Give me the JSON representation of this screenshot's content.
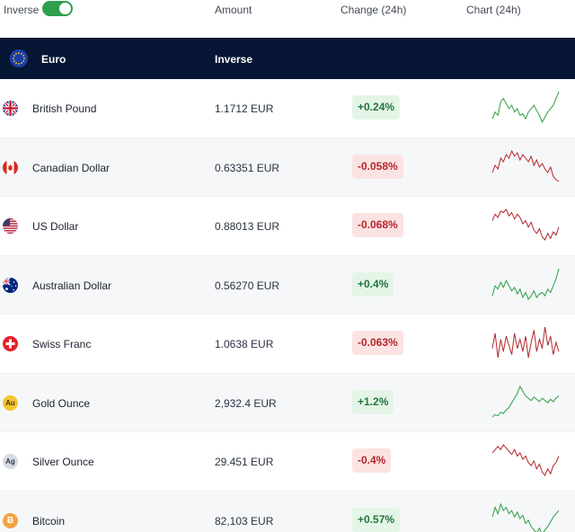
{
  "header": {
    "inverse_label": "Inverse",
    "inverse_on": true,
    "amount_label": "Amount",
    "change_label": "Change (24h)",
    "chart_label": "Chart (24h)"
  },
  "base": {
    "name": "Euro",
    "inverse_label": "Inverse"
  },
  "colors": {
    "up": "#2e9e3f",
    "down": "#b3262c",
    "base_bar": "#061634"
  },
  "rows": [
    {
      "name": "British Pound",
      "amount": "1.1712 EUR",
      "change": "+0.24%",
      "trend": "up",
      "flag": "gb-flag-icon",
      "spark": [
        18,
        14,
        16,
        8,
        6,
        9,
        12,
        10,
        14,
        12,
        16,
        15,
        18,
        14,
        12,
        10,
        13,
        16,
        20,
        17,
        14,
        12,
        10,
        6,
        2
      ]
    },
    {
      "name": "Canadian Dollar",
      "amount": "0.63351 EUR",
      "change": "-0.058%",
      "trend": "down",
      "flag": "ca-flag-icon",
      "spark": [
        22,
        18,
        20,
        14,
        16,
        12,
        14,
        10,
        13,
        11,
        15,
        12,
        14,
        16,
        13,
        18,
        15,
        19,
        17,
        20,
        22,
        19,
        24,
        26,
        27
      ]
    },
    {
      "name": "US Dollar",
      "amount": "0.88013 EUR",
      "change": "-0.068%",
      "trend": "down",
      "flag": "us-flag-icon",
      "spark": [
        14,
        10,
        12,
        8,
        9,
        7,
        11,
        9,
        13,
        10,
        12,
        16,
        14,
        18,
        15,
        20,
        22,
        19,
        24,
        26,
        22,
        25,
        21,
        23,
        18
      ]
    },
    {
      "name": "Australian Dollar",
      "amount": "0.56270 EUR",
      "change": "+0.4%",
      "trend": "up",
      "flag": "au-flag-icon",
      "spark": [
        22,
        16,
        18,
        14,
        17,
        13,
        16,
        19,
        17,
        21,
        18,
        23,
        20,
        24,
        22,
        19,
        23,
        21,
        20,
        22,
        18,
        20,
        16,
        12,
        6
      ]
    },
    {
      "name": "Swiss Franc",
      "amount": "1.0638 EUR",
      "change": "-0.063%",
      "trend": "down",
      "flag": "ch-flag-icon",
      "spark": [
        20,
        10,
        26,
        14,
        22,
        12,
        18,
        24,
        10,
        20,
        14,
        22,
        12,
        26,
        16,
        8,
        22,
        14,
        20,
        6,
        18,
        12,
        24,
        16,
        22
      ]
    },
    {
      "name": "Gold Ounce",
      "amount": "2,932.4 EUR",
      "change": "+1.2%",
      "trend": "up",
      "flag": "gold-icon",
      "flag_text": "Au",
      "spark": [
        32,
        30,
        31,
        28,
        29,
        26,
        24,
        20,
        16,
        12,
        6,
        10,
        14,
        16,
        18,
        15,
        17,
        19,
        16,
        18,
        20,
        17,
        19,
        16,
        14
      ]
    },
    {
      "name": "Silver Ounce",
      "amount": "29.451 EUR",
      "change": "-0.4%",
      "trend": "down",
      "flag": "silver-icon",
      "flag_text": "Ag",
      "spark": [
        12,
        10,
        8,
        10,
        7,
        9,
        11,
        13,
        10,
        14,
        12,
        16,
        14,
        18,
        20,
        17,
        22,
        19,
        24,
        26,
        22,
        25,
        20,
        18,
        14
      ]
    },
    {
      "name": "Bitcoin",
      "amount": "82,103 EUR",
      "change": "+0.57%",
      "trend": "up",
      "flag": "bitcoin-icon",
      "flag_text": "Ƀ",
      "spark": [
        14,
        8,
        12,
        6,
        10,
        8,
        12,
        10,
        14,
        11,
        15,
        13,
        18,
        16,
        20,
        22,
        24,
        21,
        25,
        22,
        20,
        17,
        14,
        12,
        10
      ]
    }
  ]
}
